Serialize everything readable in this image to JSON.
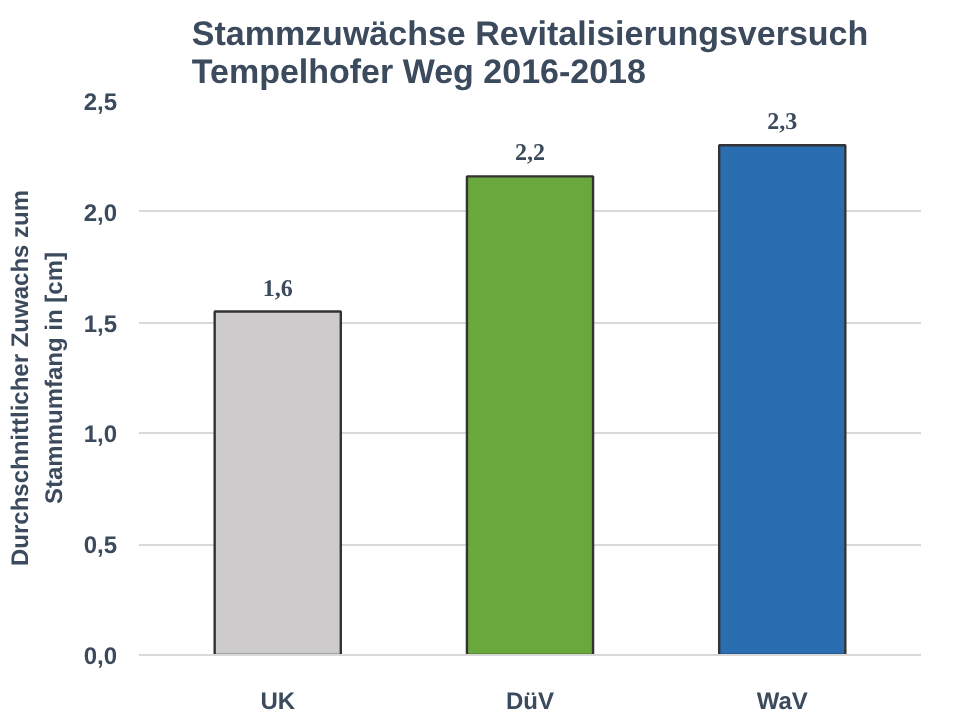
{
  "chart_data": {
    "type": "bar",
    "title": "Stammzuwächse Revitalisierungsversuch\nTempelhofer Weg 2016-2018",
    "ylabel": "Durchschnittlicher Zuwachs zum\nStammumfang in [cm]",
    "categories": [
      "UK",
      "DüV",
      "WaV"
    ],
    "values": [
      1.55,
      2.16,
      2.3
    ],
    "colors": [
      "#cdcbcb",
      "#6aa83d",
      "#2a6db0"
    ],
    "value_labels": [
      "1,6",
      "2,2",
      "2,3"
    ],
    "ylim": [
      0,
      2.5
    ],
    "yticks": [
      {
        "value": 0,
        "label": "0,0"
      },
      {
        "value": 0.5,
        "label": "0,5"
      },
      {
        "value": 1,
        "label": "1,0"
      },
      {
        "value": 1.5,
        "label": "1,5"
      },
      {
        "value": 2,
        "label": "2,0"
      },
      {
        "value": 2.5,
        "label": "2,5"
      }
    ],
    "grid": "y"
  }
}
